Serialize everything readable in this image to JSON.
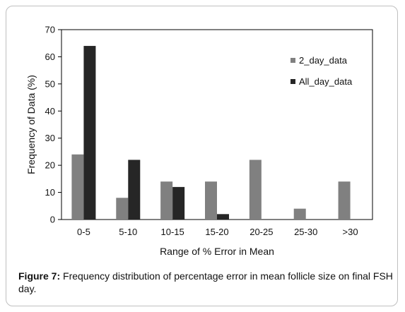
{
  "chart_data": {
    "type": "bar",
    "categories": [
      "0-5",
      "5-10",
      "10-15",
      "15-20",
      "20-25",
      "25-30",
      ">30"
    ],
    "series": [
      {
        "name": "2_day_data",
        "values": [
          24,
          8,
          14,
          14,
          22,
          4,
          14
        ],
        "color": "#808080"
      },
      {
        "name": "All_day_data",
        "values": [
          64,
          22,
          12,
          2,
          0,
          0,
          0
        ],
        "color": "#262626"
      }
    ],
    "ylim": [
      0,
      70
    ],
    "yticks": [
      0,
      10,
      20,
      30,
      40,
      50,
      60,
      70
    ],
    "xlabel": "Range of % Error in Mean",
    "ylabel": "Frequency of Data (%)",
    "legend_position": "top-right",
    "grid": false
  },
  "caption": {
    "label": "Figure 7:",
    "text": " Frequency distribution of percentage error in mean follicle size on final FSH day."
  }
}
